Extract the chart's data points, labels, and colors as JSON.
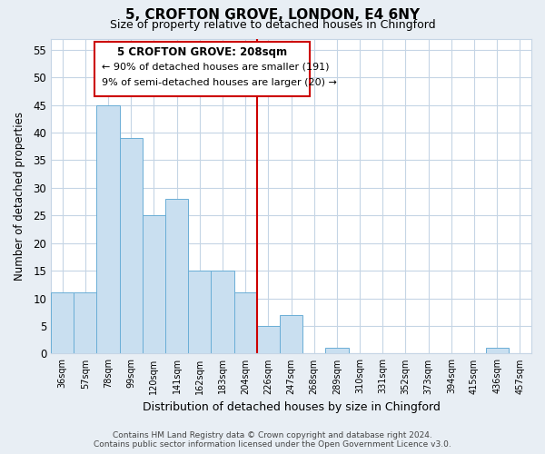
{
  "title": "5, CROFTON GROVE, LONDON, E4 6NY",
  "subtitle": "Size of property relative to detached houses in Chingford",
  "xlabel": "Distribution of detached houses by size in Chingford",
  "ylabel": "Number of detached properties",
  "bar_labels": [
    "36sqm",
    "57sqm",
    "78sqm",
    "99sqm",
    "120sqm",
    "141sqm",
    "162sqm",
    "183sqm",
    "204sqm",
    "226sqm",
    "247sqm",
    "268sqm",
    "289sqm",
    "310sqm",
    "331sqm",
    "352sqm",
    "373sqm",
    "394sqm",
    "415sqm",
    "436sqm",
    "457sqm"
  ],
  "bar_values": [
    11,
    11,
    45,
    39,
    25,
    28,
    15,
    15,
    11,
    5,
    7,
    0,
    1,
    0,
    0,
    0,
    0,
    0,
    0,
    1,
    0
  ],
  "bar_color": "#c9dff0",
  "bar_edge_color": "#6aaed6",
  "vline_color": "#cc0000",
  "annotation_title": "5 CROFTON GROVE: 208sqm",
  "annotation_line1": "← 90% of detached houses are smaller (191)",
  "annotation_line2": "9% of semi-detached houses are larger (20) →",
  "annotation_box_color": "#cc0000",
  "ylim": [
    0,
    57
  ],
  "yticks": [
    0,
    5,
    10,
    15,
    20,
    25,
    30,
    35,
    40,
    45,
    50,
    55
  ],
  "footer_line1": "Contains HM Land Registry data © Crown copyright and database right 2024.",
  "footer_line2": "Contains public sector information licensed under the Open Government Licence v3.0.",
  "bg_color": "#e8eef4",
  "plot_bg_color": "#ffffff",
  "grid_color": "#c5d5e5"
}
